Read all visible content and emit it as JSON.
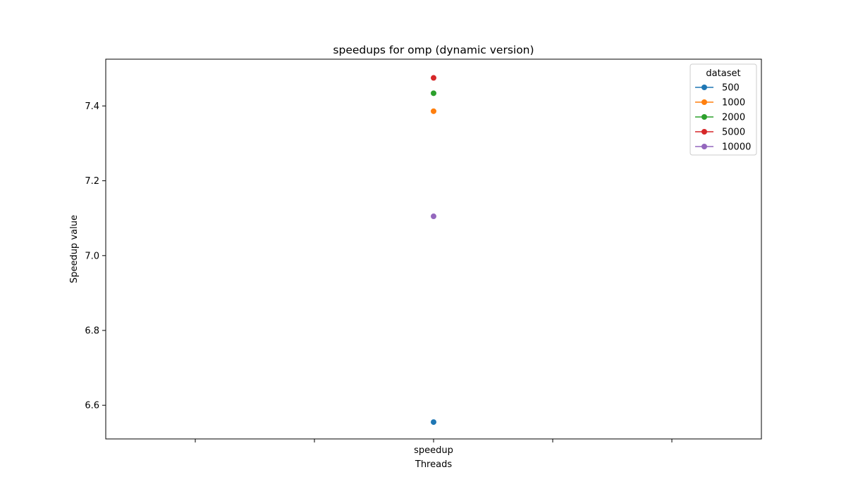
{
  "chart_data": {
    "type": "line",
    "title": "speedups for omp (dynamic version)",
    "xlabel": "Threads",
    "ylabel": "Speedup value",
    "categories": [
      "speedup"
    ],
    "x_ticks": [
      "",
      "",
      "speedup",
      "",
      ""
    ],
    "ylim": [
      6.51,
      7.525
    ],
    "yticks": [
      6.6,
      6.8,
      7.0,
      7.2,
      7.4
    ],
    "ytick_labels": [
      "6.6",
      "6.8",
      "7.0",
      "7.2",
      "7.4"
    ],
    "grid": false,
    "legend": {
      "title": "dataset",
      "placement": "top-right"
    },
    "series": [
      {
        "name": "500",
        "color": "#1f77b4",
        "values": [
          6.555
        ]
      },
      {
        "name": "1000",
        "color": "#ff7f0e",
        "values": [
          7.386
        ]
      },
      {
        "name": "2000",
        "color": "#2ca02c",
        "values": [
          7.434
        ]
      },
      {
        "name": "5000",
        "color": "#d62728",
        "values": [
          7.475
        ]
      },
      {
        "name": "10000",
        "color": "#9467bd",
        "values": [
          7.105
        ]
      }
    ]
  }
}
